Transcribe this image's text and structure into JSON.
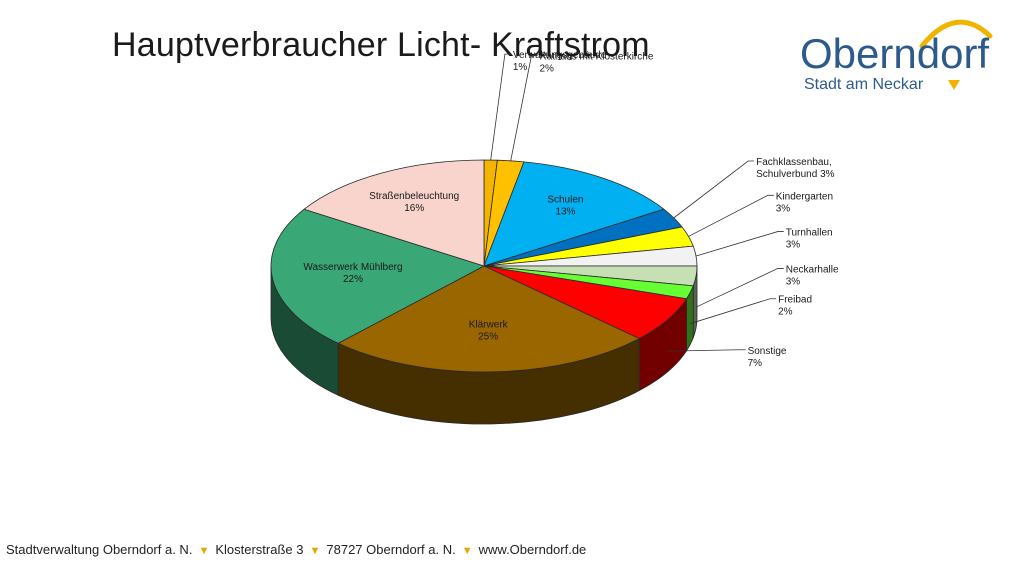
{
  "page": {
    "title": "Hauptverbraucher Licht- Kraftstrom"
  },
  "logo": {
    "name": "Oberndorf",
    "subtitle": "Stadt am Neckar",
    "arc_color": "#f0b400",
    "text_color": "#2d5a8c"
  },
  "footer": {
    "items": [
      "Stadtverwaltung Oberndorf a. N.",
      "Klosterstraße 3",
      "78727 Oberndorf a. N.",
      "www.Oberndorf.de"
    ],
    "separator": "▼",
    "separator_color": "#e5a800"
  },
  "chart_data": {
    "type": "pie",
    "style": "3d",
    "title": "Hauptverbraucher Licht- Kraftstrom",
    "legend": "none",
    "slices": [
      {
        "label": "Verwaltungsgebäude",
        "value": 1,
        "display": "1%",
        "color": "#f5b400"
      },
      {
        "label": "Rathaus mit Klosterkirche",
        "value": 2,
        "display": "2%",
        "color": "#ffc000"
      },
      {
        "label": "Schulen",
        "value": 13,
        "display": "13%",
        "color": "#00b0f0"
      },
      {
        "label": "Fachklassenbau, Schulverbund",
        "value": 3,
        "display": "3%",
        "color": "#0070c0"
      },
      {
        "label": "Kindergarten",
        "value": 3,
        "display": "3%",
        "color": "#ffff00"
      },
      {
        "label": "Turnhallen",
        "value": 3,
        "display": "3%",
        "color": "#f2f2f2"
      },
      {
        "label": "Neckarhalle",
        "value": 3,
        "display": "3%",
        "color": "#c6e0b4"
      },
      {
        "label": "Freibad",
        "value": 2,
        "display": "2%",
        "color": "#66ff33"
      },
      {
        "label": "Sonstige",
        "value": 7,
        "display": "7%",
        "color": "#ff0000"
      },
      {
        "label": "Klärwerk",
        "value": 25,
        "display": "25%",
        "color": "#996600"
      },
      {
        "label": "Wasserwerk Mühlberg",
        "value": 22,
        "display": "22%",
        "color": "#3aa776"
      },
      {
        "label": "Straßenbeleuchtung",
        "value": 16,
        "display": "16%",
        "color": "#f8d4cc"
      }
    ]
  }
}
